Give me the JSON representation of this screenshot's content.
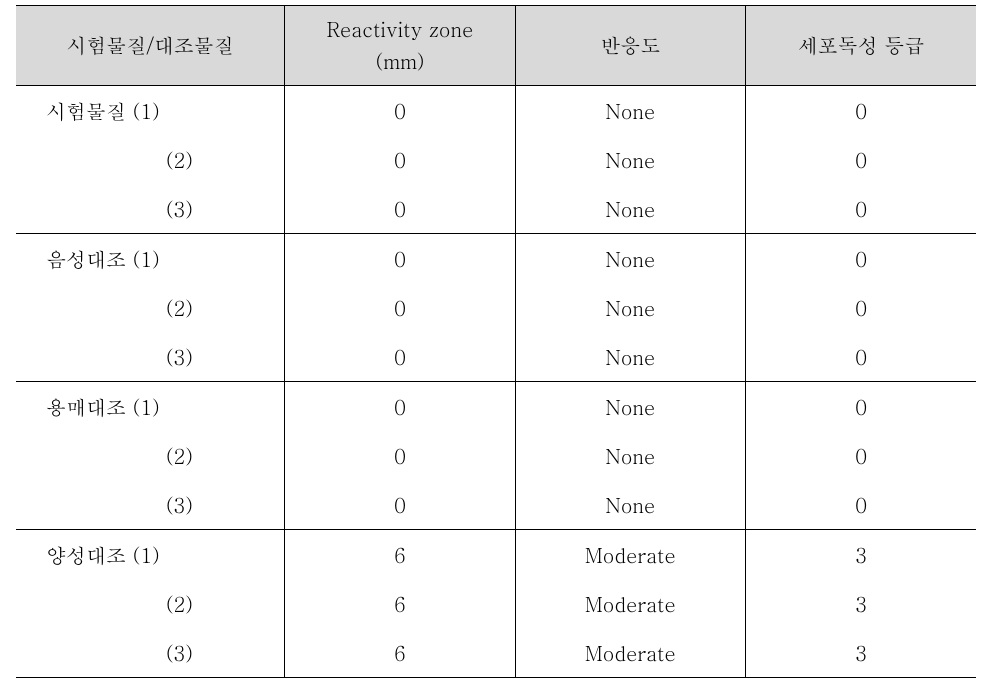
{
  "table": {
    "columns": [
      "시험물질/대조물질",
      "Reactivity zone\n(mm)",
      "반응도",
      "세포독성 등급"
    ],
    "column_widths": [
      "28%",
      "24%",
      "24%",
      "24%"
    ],
    "header_bg": "#d9d9d9",
    "border_color": "#000000",
    "font_size": 20,
    "groups": [
      {
        "label": "시험물질",
        "rows": [
          {
            "idx": "(1)",
            "zone": "0",
            "react": "None",
            "grade": "0"
          },
          {
            "idx": "(2)",
            "zone": "0",
            "react": "None",
            "grade": "0"
          },
          {
            "idx": "(3)",
            "zone": "0",
            "react": "None",
            "grade": "0"
          }
        ]
      },
      {
        "label": "음성대조",
        "rows": [
          {
            "idx": "(1)",
            "zone": "0",
            "react": "None",
            "grade": "0"
          },
          {
            "idx": "(2)",
            "zone": "0",
            "react": "None",
            "grade": "0"
          },
          {
            "idx": "(3)",
            "zone": "0",
            "react": "None",
            "grade": "0"
          }
        ]
      },
      {
        "label": "용매대조",
        "rows": [
          {
            "idx": "(1)",
            "zone": "0",
            "react": "None",
            "grade": "0"
          },
          {
            "idx": "(2)",
            "zone": "0",
            "react": "None",
            "grade": "0"
          },
          {
            "idx": "(3)",
            "zone": "0",
            "react": "None",
            "grade": "0"
          }
        ]
      },
      {
        "label": "양성대조",
        "rows": [
          {
            "idx": "(1)",
            "zone": "6",
            "react": "Moderate",
            "grade": "3"
          },
          {
            "idx": "(2)",
            "zone": "6",
            "react": "Moderate",
            "grade": "3"
          },
          {
            "idx": "(3)",
            "zone": "6",
            "react": "Moderate",
            "grade": "3"
          }
        ]
      }
    ]
  }
}
